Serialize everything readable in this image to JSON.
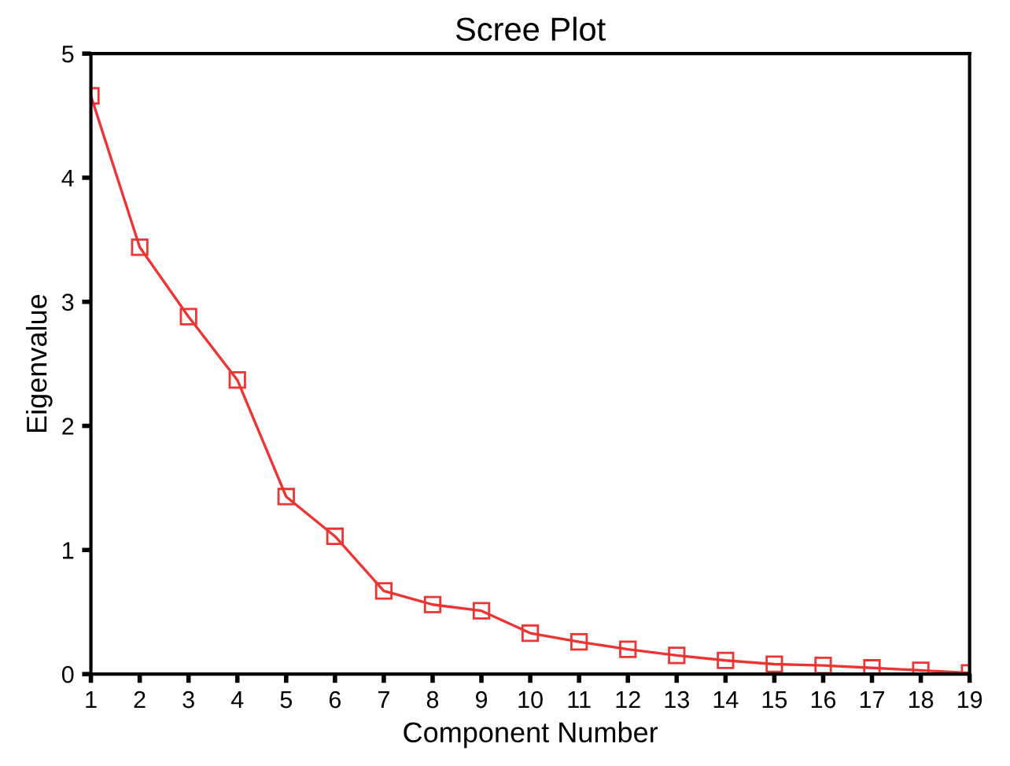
{
  "chart_data": {
    "type": "line",
    "title": "Scree Plot",
    "xlabel": "Component Number",
    "ylabel": "Eigenvalue",
    "x": [
      1,
      2,
      3,
      4,
      5,
      6,
      7,
      8,
      9,
      10,
      11,
      12,
      13,
      14,
      15,
      16,
      17,
      18,
      19
    ],
    "series": [
      {
        "color": "#ee3333",
        "values": [
          4.66,
          3.44,
          2.88,
          2.37,
          1.43,
          1.11,
          0.67,
          0.56,
          0.51,
          0.33,
          0.26,
          0.2,
          0.15,
          0.11,
          0.08,
          0.07,
          0.05,
          0.03,
          0.01
        ]
      }
    ],
    "xlim": [
      1,
      19
    ],
    "xticks": [
      1,
      2,
      3,
      4,
      5,
      6,
      7,
      8,
      9,
      10,
      11,
      12,
      13,
      14,
      15,
      16,
      17,
      18,
      19
    ],
    "ylim": [
      0,
      5
    ],
    "yticks": [
      0,
      1,
      2,
      3,
      4,
      5
    ],
    "grid": false,
    "marker": "square",
    "line_style": "solid"
  }
}
